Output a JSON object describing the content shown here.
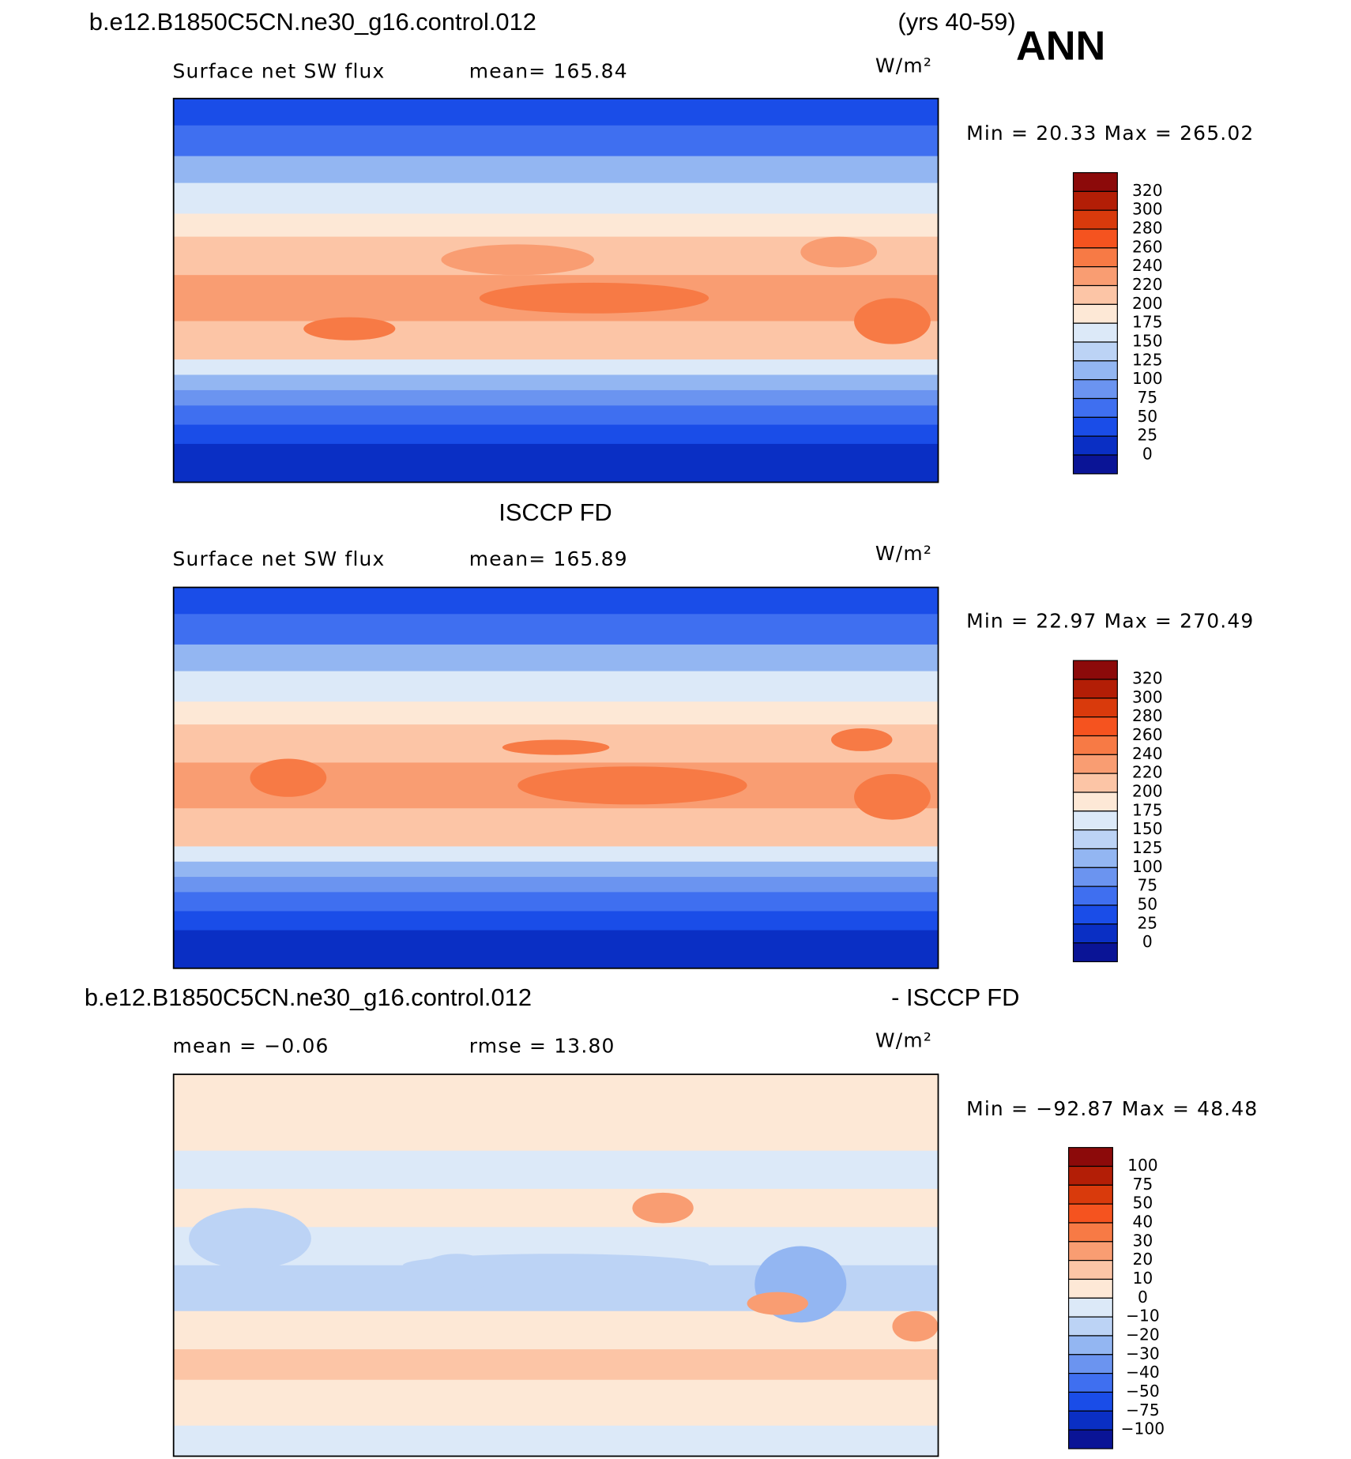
{
  "header": {
    "case": "b.e12.B1850C5CN.ne30_g16.control.012",
    "years": "(yrs 40-59)",
    "season": "ANN"
  },
  "panels": [
    {
      "left": "Surface net SW flux",
      "center": "mean= 165.84",
      "units": "W/m²",
      "minmax": "Min =   20.33  Max  =  265.02",
      "colorbar": {
        "colors": [
          "#8c0a0a",
          "#b31e06",
          "#d93a0c",
          "#f5531f",
          "#f77a45",
          "#f99d72",
          "#fcc5a6",
          "#fde8d6",
          "#dce9f8",
          "#bcd3f5",
          "#93b6f2",
          "#6b94f0",
          "#3f6ff0",
          "#1a4de8",
          "#0a2fc4",
          "#0a1496"
        ],
        "labels": [
          "320",
          "300",
          "280",
          "260",
          "240",
          "220",
          "200",
          "175",
          "150",
          "125",
          "100",
          "75",
          "50",
          "25",
          "0"
        ]
      }
    },
    {
      "title": "ISCCP FD",
      "left": "Surface net SW flux",
      "center": "mean= 165.89",
      "units": "W/m²",
      "minmax": "Min =   22.97  Max  =  270.49",
      "colorbar": {
        "colors": [
          "#8c0a0a",
          "#b31e06",
          "#d93a0c",
          "#f5531f",
          "#f77a45",
          "#f99d72",
          "#fcc5a6",
          "#fde8d6",
          "#dce9f8",
          "#bcd3f5",
          "#93b6f2",
          "#6b94f0",
          "#3f6ff0",
          "#1a4de8",
          "#0a2fc4",
          "#0a1496"
        ],
        "labels": [
          "320",
          "300",
          "280",
          "260",
          "240",
          "220",
          "200",
          "175",
          "150",
          "125",
          "100",
          "75",
          "50",
          "25",
          "0"
        ]
      }
    },
    {
      "title_left": "b.e12.B1850C5CN.ne30_g16.control.012",
      "title_right": "- ISCCP FD",
      "left": "mean =   −0.06",
      "center": "rmse =   13.80",
      "units": "W/m²",
      "minmax": "Min = −92.87  Max =   48.48",
      "colorbar": {
        "colors": [
          "#8c0a0a",
          "#b31e06",
          "#d93a0c",
          "#f5531f",
          "#f77a45",
          "#f99d72",
          "#fcc5a6",
          "#fde8d6",
          "#dce9f8",
          "#bcd3f5",
          "#93b6f2",
          "#6b94f0",
          "#3f6ff0",
          "#1a4de8",
          "#0a2fc4",
          "#0a1496"
        ],
        "labels": [
          "100",
          "75",
          "50",
          "40",
          "30",
          "20",
          "10",
          "0",
          "−10",
          "−20",
          "−30",
          "−40",
          "−50",
          "−75",
          "−100"
        ]
      }
    }
  ]
}
